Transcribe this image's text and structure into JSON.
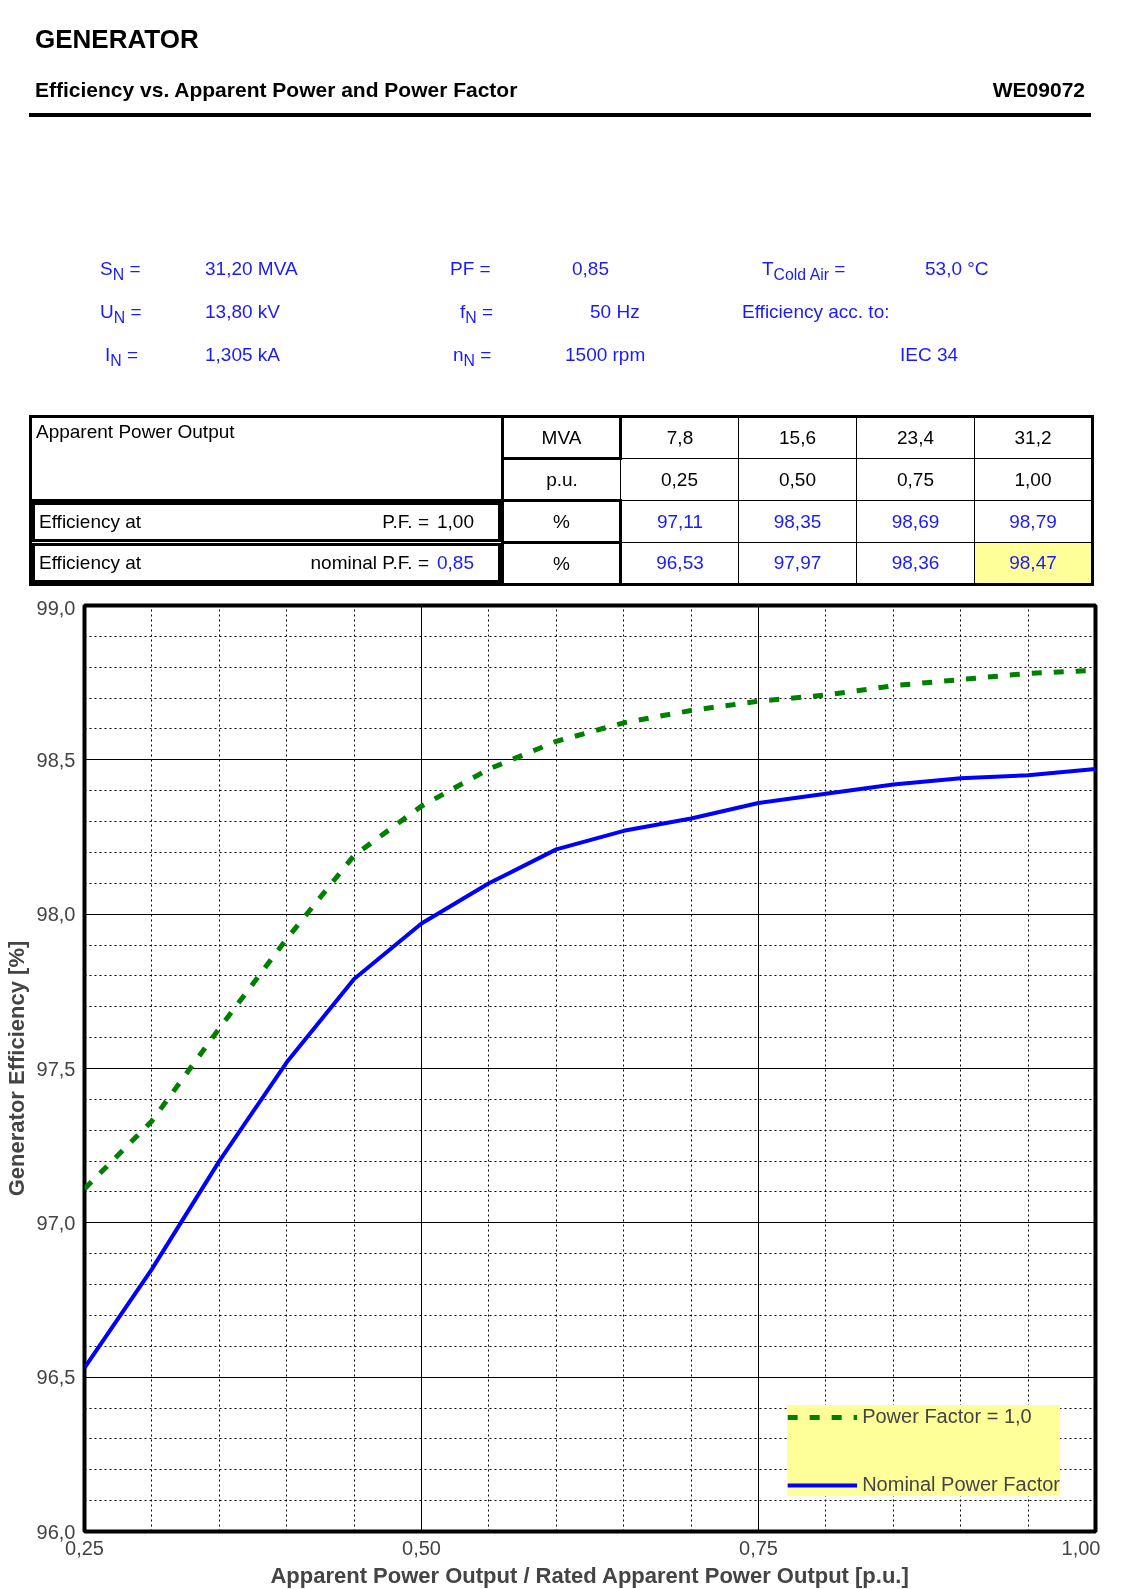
{
  "chart_data": {
    "type": "line",
    "title": "GENERATOR",
    "subtitle": "Efficiency vs. Apparent Power and Power Factor",
    "xlabel": "Apparent Power Output / Rated Apparent Power Output [p.u.]",
    "ylabel": "Generator Efficiency [%]",
    "annotations": [
      "WE09072",
      "S$_{N}$ =",
      "31,20  MVA",
      "PF =",
      "0,85",
      "T$_{Cold Air}$ =",
      "53,0 °C",
      "U$_{N}$ =",
      "13,80  kV",
      "f$_{N}$ =",
      "50  Hz",
      "Efficiency acc. to:",
      "I$_{N}$ =",
      "1,305  kA",
      "n$_{N}$ =",
      "1500  rpm",
      "IEC 34",
      "Apparent Power Output",
      "MVA",
      "7,8",
      "15,6",
      "23,4",
      "31,2",
      "p.u.",
      "0,25",
      "0,50",
      "0,75",
      "1,00",
      "Efficiency at",
      "P.F. =",
      "1,00",
      "%",
      "97,11",
      "98,35",
      "98,69",
      "98,79",
      "Efficiency at",
      "nominal P.F. =",
      "0,85",
      "%",
      "96,53",
      "97,97",
      "98,36",
      "98,47"
    ],
    "x": [
      0.25,
      0.3,
      0.35,
      0.4,
      0.45,
      0.5,
      0.55,
      0.6,
      0.65,
      0.7,
      0.75,
      0.8,
      0.85,
      0.9,
      0.95,
      1.0
    ],
    "series": [
      {
        "name": "Power Factor = 1,0",
        "color": "#008000",
        "line_style": "dashed",
        "values": [
          97.11,
          97.33,
          97.63,
          97.92,
          98.19,
          98.35,
          98.47,
          98.56,
          98.62,
          98.66,
          98.69,
          98.71,
          98.74,
          98.76,
          98.78,
          98.79
        ]
      },
      {
        "name": "Nominal Power Factor",
        "color": "#0000ff",
        "line_style": "solid",
        "values": [
          96.53,
          96.85,
          97.2,
          97.52,
          97.79,
          97.97,
          98.1,
          98.21,
          98.27,
          98.31,
          98.36,
          98.39,
          98.42,
          98.44,
          98.45,
          98.47
        ]
      }
    ],
    "xlim": [
      0.25,
      1.0
    ],
    "ylim": [
      96.0,
      99.0
    ],
    "xticks": [
      {
        "value": 0.25,
        "label": "0,25"
      },
      {
        "value": 0.5,
        "label": "0,50"
      },
      {
        "value": 0.75,
        "label": "0,75"
      },
      {
        "value": 1.0,
        "label": "1,00"
      }
    ],
    "yticks": [
      {
        "value": 96.0,
        "label": "96,0"
      },
      {
        "value": 96.5,
        "label": "96,5"
      },
      {
        "value": 97.0,
        "label": "97,0"
      },
      {
        "value": 97.5,
        "label": "97,5"
      },
      {
        "value": 98.0,
        "label": "98,0"
      },
      {
        "value": 98.5,
        "label": "98,5"
      },
      {
        "value": 99.0,
        "label": "99,0"
      }
    ],
    "grid": true,
    "legend": "bottom right",
    "marker": "none"
  }
}
